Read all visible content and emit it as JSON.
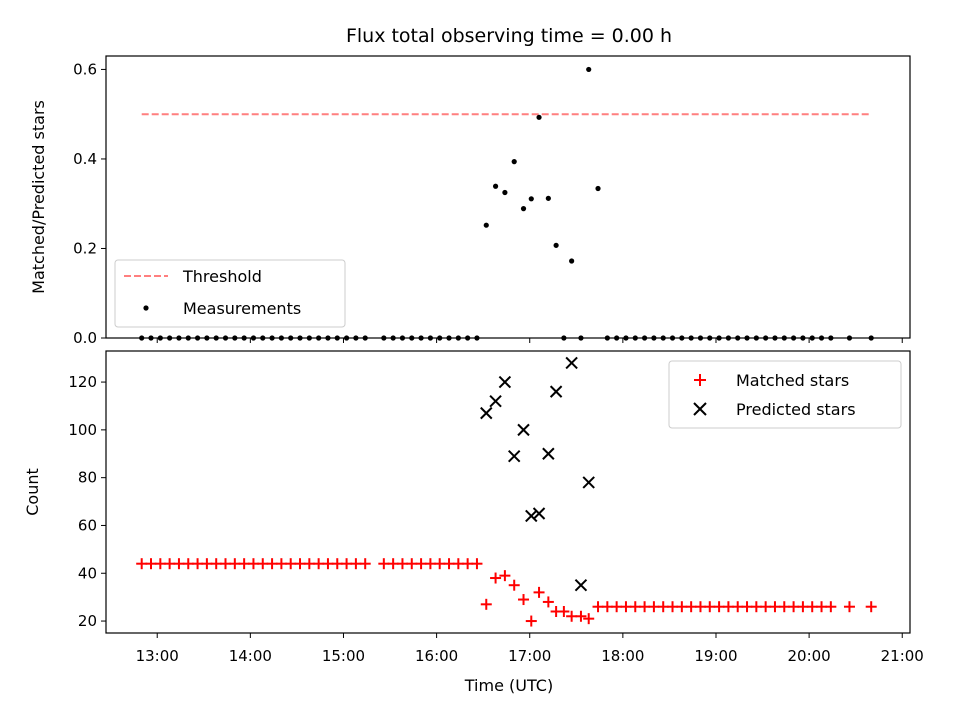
{
  "chart_data": [
    {
      "type": "scatter",
      "title": "Flux total observing time = 0.00 h",
      "ylabel": "Matched/Predicted stars",
      "xlim": [
        "12:27",
        "21:05"
      ],
      "ylim": [
        0,
        0.63
      ],
      "yticks": [
        "0.0",
        "0.2",
        "0.4",
        "0.6"
      ],
      "grid": false,
      "legend_position": "lower-left",
      "colors": {
        "threshold": "#ff7f7f",
        "measurements": "#000000"
      },
      "series": [
        {
          "name": "Threshold",
          "kind": "dashed-line",
          "x": [
            "12:50",
            "20:40"
          ],
          "y": [
            0.5,
            0.5
          ]
        },
        {
          "name": "Measurements",
          "kind": "dots",
          "x": [
            "12:50",
            "12:56",
            "13:02",
            "13:08",
            "13:14",
            "13:20",
            "13:26",
            "13:32",
            "13:38",
            "13:44",
            "13:50",
            "13:56",
            "14:02",
            "14:08",
            "14:14",
            "14:20",
            "14:26",
            "14:32",
            "14:38",
            "14:44",
            "14:50",
            "14:56",
            "15:02",
            "15:08",
            "15:14",
            "15:26",
            "15:32",
            "15:38",
            "15:44",
            "15:50",
            "15:56",
            "16:02",
            "16:08",
            "16:14",
            "16:20",
            "16:26",
            "16:32",
            "16:38",
            "16:44",
            "16:50",
            "16:56",
            "17:01",
            "17:06",
            "17:12",
            "17:17",
            "17:22",
            "17:27",
            "17:33",
            "17:38",
            "17:44",
            "17:50",
            "17:56",
            "18:02",
            "18:08",
            "18:14",
            "18:20",
            "18:26",
            "18:32",
            "18:38",
            "18:44",
            "18:50",
            "18:56",
            "19:02",
            "19:08",
            "19:14",
            "19:20",
            "19:26",
            "19:32",
            "19:38",
            "19:44",
            "19:50",
            "19:56",
            "20:02",
            "20:08",
            "20:14",
            "20:26",
            "20:40"
          ],
          "y": [
            0,
            0,
            0,
            0,
            0,
            0,
            0,
            0,
            0,
            0,
            0,
            0,
            0,
            0,
            0,
            0,
            0,
            0,
            0,
            0,
            0,
            0,
            0,
            0,
            0,
            0,
            0,
            0,
            0,
            0,
            0,
            0,
            0,
            0,
            0,
            0,
            0.252,
            0.339,
            0.325,
            0.394,
            0.289,
            0.311,
            0.493,
            0.312,
            0.207,
            0,
            0.172,
            0,
            0.6,
            0.334,
            0,
            0,
            0,
            0,
            0,
            0,
            0,
            0,
            0,
            0,
            0,
            0,
            0,
            0,
            0,
            0,
            0,
            0,
            0,
            0,
            0,
            0,
            0,
            0,
            0,
            0,
            0
          ]
        }
      ]
    },
    {
      "type": "scatter",
      "title": "",
      "xlabel": "Time (UTC)",
      "ylabel": "Count",
      "xlim": [
        "12:27",
        "21:05"
      ],
      "ylim": [
        15,
        133
      ],
      "xticks": [
        "13:00",
        "14:00",
        "15:00",
        "16:00",
        "17:00",
        "18:00",
        "19:00",
        "20:00",
        "21:00"
      ],
      "yticks": [
        "20",
        "40",
        "60",
        "80",
        "100",
        "120"
      ],
      "grid": false,
      "legend_position": "upper-right",
      "colors": {
        "matched": "#ff0000",
        "predicted": "#000000"
      },
      "series": [
        {
          "name": "Matched stars",
          "marker": "plus",
          "x": [
            "12:50",
            "12:56",
            "13:02",
            "13:08",
            "13:14",
            "13:20",
            "13:26",
            "13:32",
            "13:38",
            "13:44",
            "13:50",
            "13:56",
            "14:02",
            "14:08",
            "14:14",
            "14:20",
            "14:26",
            "14:32",
            "14:38",
            "14:44",
            "14:50",
            "14:56",
            "15:02",
            "15:08",
            "15:14",
            "15:26",
            "15:32",
            "15:38",
            "15:44",
            "15:50",
            "15:56",
            "16:02",
            "16:08",
            "16:14",
            "16:20",
            "16:26",
            "16:32",
            "16:38",
            "16:44",
            "16:50",
            "16:56",
            "17:01",
            "17:06",
            "17:12",
            "17:17",
            "17:22",
            "17:27",
            "17:33",
            "17:38",
            "17:44",
            "17:50",
            "17:56",
            "18:02",
            "18:08",
            "18:14",
            "18:20",
            "18:26",
            "18:32",
            "18:38",
            "18:44",
            "18:50",
            "18:56",
            "19:02",
            "19:08",
            "19:14",
            "19:20",
            "19:26",
            "19:32",
            "19:38",
            "19:44",
            "19:50",
            "19:56",
            "20:02",
            "20:08",
            "20:14",
            "20:26",
            "20:40"
          ],
          "y": [
            44,
            44,
            44,
            44,
            44,
            44,
            44,
            44,
            44,
            44,
            44,
            44,
            44,
            44,
            44,
            44,
            44,
            44,
            44,
            44,
            44,
            44,
            44,
            44,
            44,
            44,
            44,
            44,
            44,
            44,
            44,
            44,
            44,
            44,
            44,
            44,
            27,
            38,
            39,
            35,
            29,
            20,
            32,
            28,
            24,
            24,
            22,
            22,
            21,
            26,
            26,
            26,
            26,
            26,
            26,
            26,
            26,
            26,
            26,
            26,
            26,
            26,
            26,
            26,
            26,
            26,
            26,
            26,
            26,
            26,
            26,
            26,
            26,
            26,
            26,
            26,
            26
          ]
        },
        {
          "name": "Predicted stars",
          "marker": "x",
          "x": [
            "16:32",
            "16:38",
            "16:44",
            "16:50",
            "16:56",
            "17:01",
            "17:06",
            "17:12",
            "17:17",
            "17:27",
            "17:33",
            "17:38"
          ],
          "y": [
            107,
            112,
            120,
            89,
            100,
            64,
            65,
            90,
            116,
            128,
            35,
            78
          ]
        }
      ]
    }
  ]
}
